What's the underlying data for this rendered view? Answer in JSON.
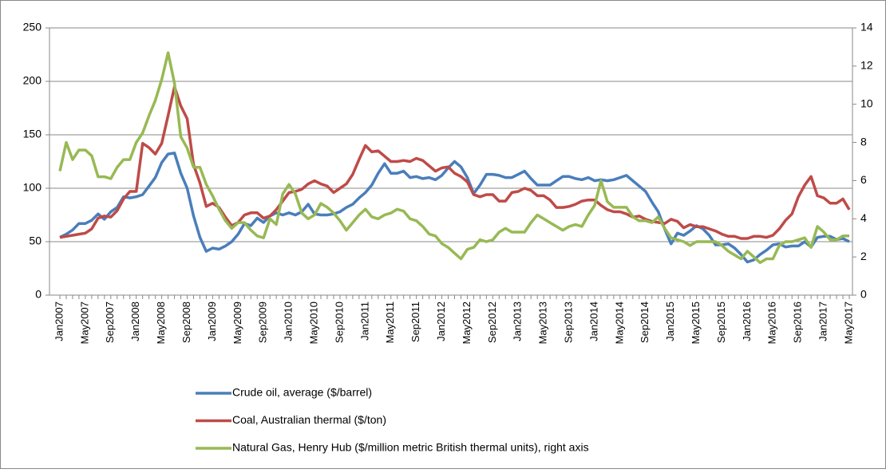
{
  "chart_data": {
    "type": "line",
    "categories": [
      "Jan2007",
      null,
      null,
      null,
      "May2007",
      null,
      null,
      null,
      "Sep2007",
      null,
      null,
      null,
      "Jan2008",
      null,
      null,
      null,
      "May2008",
      null,
      null,
      null,
      "Sep2008",
      null,
      null,
      null,
      "Jan2009",
      null,
      null,
      null,
      "May2009",
      null,
      null,
      null,
      "Sep2009",
      null,
      null,
      null,
      "Jan2010",
      null,
      null,
      null,
      "May2010",
      null,
      null,
      null,
      "Sep2010",
      null,
      null,
      null,
      "Jan2011",
      null,
      null,
      null,
      "May2011",
      null,
      null,
      null,
      "Sep2011",
      null,
      null,
      null,
      "Jan2012",
      null,
      null,
      null,
      "May2012",
      null,
      null,
      null,
      "Sep2012",
      null,
      null,
      null,
      "Jan2013",
      null,
      null,
      null,
      "May2013",
      null,
      null,
      null,
      "Sep2013",
      null,
      null,
      null,
      "Jan2014",
      null,
      null,
      null,
      "May2014",
      null,
      null,
      null,
      "Sep2014",
      null,
      null,
      null,
      "Jan2015",
      null,
      null,
      null,
      "May2015",
      null,
      null,
      null,
      "Sep2015",
      null,
      null,
      null,
      "Jan2016",
      null,
      null,
      null,
      "May2016",
      null,
      null,
      null,
      "Sep2016",
      null,
      null,
      null,
      "Jan2017",
      null,
      null,
      null,
      "May2017"
    ],
    "series": [
      {
        "name": "Crude oil, average ($/barrel)",
        "color": "#4a7ebb",
        "values": [
          54,
          57,
          61,
          67,
          67,
          70,
          76,
          71,
          78,
          82,
          92,
          91,
          92,
          94,
          102,
          110,
          124,
          132,
          133,
          114,
          100,
          74,
          54,
          41,
          44,
          43,
          46,
          50,
          57,
          67,
          65,
          72,
          68,
          74,
          77,
          75,
          77,
          75,
          78,
          85,
          76,
          75,
          75,
          76,
          78,
          82,
          85,
          91,
          96,
          103,
          114,
          123,
          114,
          114,
          116,
          110,
          111,
          109,
          110,
          108,
          112,
          119,
          125,
          120,
          110,
          95,
          103,
          113,
          113,
          112,
          110,
          110,
          113,
          116,
          109,
          103,
          103,
          103,
          107,
          111,
          111,
          109,
          108,
          110,
          107,
          108,
          107,
          108,
          110,
          112,
          107,
          102,
          97,
          87,
          78,
          62,
          48,
          58,
          56,
          60,
          65,
          62,
          56,
          47,
          47,
          48,
          44,
          38,
          31,
          33,
          38,
          42,
          47,
          48,
          45,
          46,
          46,
          50,
          45,
          54,
          55,
          55,
          52,
          53,
          50
        ]
      },
      {
        "name": "Coal, Australian thermal ($/ton)",
        "color": "#be4b48",
        "values": [
          54,
          55,
          56,
          57,
          58,
          62,
          72,
          74,
          73,
          79,
          90,
          97,
          97,
          142,
          138,
          132,
          142,
          168,
          195,
          177,
          165,
          122,
          105,
          83,
          86,
          82,
          73,
          65,
          68,
          75,
          77,
          77,
          72,
          74,
          80,
          88,
          96,
          97,
          99,
          104,
          107,
          104,
          102,
          96,
          100,
          104,
          113,
          127,
          140,
          134,
          135,
          130,
          125,
          125,
          126,
          125,
          128,
          126,
          121,
          116,
          119,
          120,
          114,
          111,
          106,
          94,
          92,
          94,
          94,
          88,
          88,
          96,
          97,
          100,
          98,
          93,
          93,
          89,
          82,
          82,
          83,
          85,
          88,
          89,
          89,
          84,
          80,
          78,
          78,
          76,
          73,
          74,
          71,
          69,
          68,
          67,
          71,
          69,
          63,
          66,
          64,
          64,
          62,
          60,
          57,
          55,
          55,
          53,
          53,
          55,
          55,
          54,
          56,
          62,
          70,
          76,
          92,
          103,
          111,
          93,
          91,
          86,
          86,
          90,
          80
        ]
      },
      {
        "name": "Natural Gas, Henry Hub ($/million metric British thermal units), right axis",
        "color": "#98b954",
        "axis": "y2",
        "values": [
          6.5,
          8.0,
          7.1,
          7.6,
          7.6,
          7.3,
          6.2,
          6.2,
          6.1,
          6.7,
          7.1,
          7.1,
          8.0,
          8.5,
          9.4,
          10.2,
          11.3,
          12.7,
          11.1,
          8.3,
          7.7,
          6.7,
          6.7,
          5.8,
          5.2,
          4.5,
          3.9,
          3.5,
          3.8,
          3.8,
          3.4,
          3.1,
          3.0,
          4.0,
          3.7,
          5.3,
          5.8,
          5.3,
          4.3,
          4.0,
          4.2,
          4.8,
          4.6,
          4.3,
          3.9,
          3.4,
          3.8,
          4.2,
          4.5,
          4.1,
          4.0,
          4.2,
          4.3,
          4.5,
          4.4,
          4.0,
          3.9,
          3.6,
          3.2,
          3.1,
          2.7,
          2.5,
          2.2,
          1.9,
          2.4,
          2.5,
          2.9,
          2.8,
          2.9,
          3.3,
          3.5,
          3.3,
          3.3,
          3.3,
          3.8,
          4.2,
          4.0,
          3.8,
          3.6,
          3.4,
          3.6,
          3.7,
          3.6,
          4.2,
          4.7,
          6.0,
          4.9,
          4.6,
          4.6,
          4.6,
          4.1,
          3.9,
          3.9,
          3.8,
          4.1,
          3.5,
          3.0,
          2.9,
          2.8,
          2.6,
          2.8,
          2.8,
          2.8,
          2.8,
          2.6,
          2.3,
          2.1,
          1.9,
          2.3,
          2.0,
          1.7,
          1.9,
          1.9,
          2.6,
          2.8,
          2.8,
          2.9,
          3.0,
          2.5,
          3.6,
          3.3,
          2.9,
          2.9,
          3.1,
          3.1
        ]
      }
    ],
    "ylim": [
      0,
      250
    ],
    "yticks": [
      0,
      50,
      100,
      150,
      200,
      250
    ],
    "y2lim": [
      0,
      14
    ],
    "y2ticks": [
      0,
      2,
      4,
      6,
      8,
      10,
      12,
      14
    ],
    "grid": true,
    "legend": "bottom"
  }
}
